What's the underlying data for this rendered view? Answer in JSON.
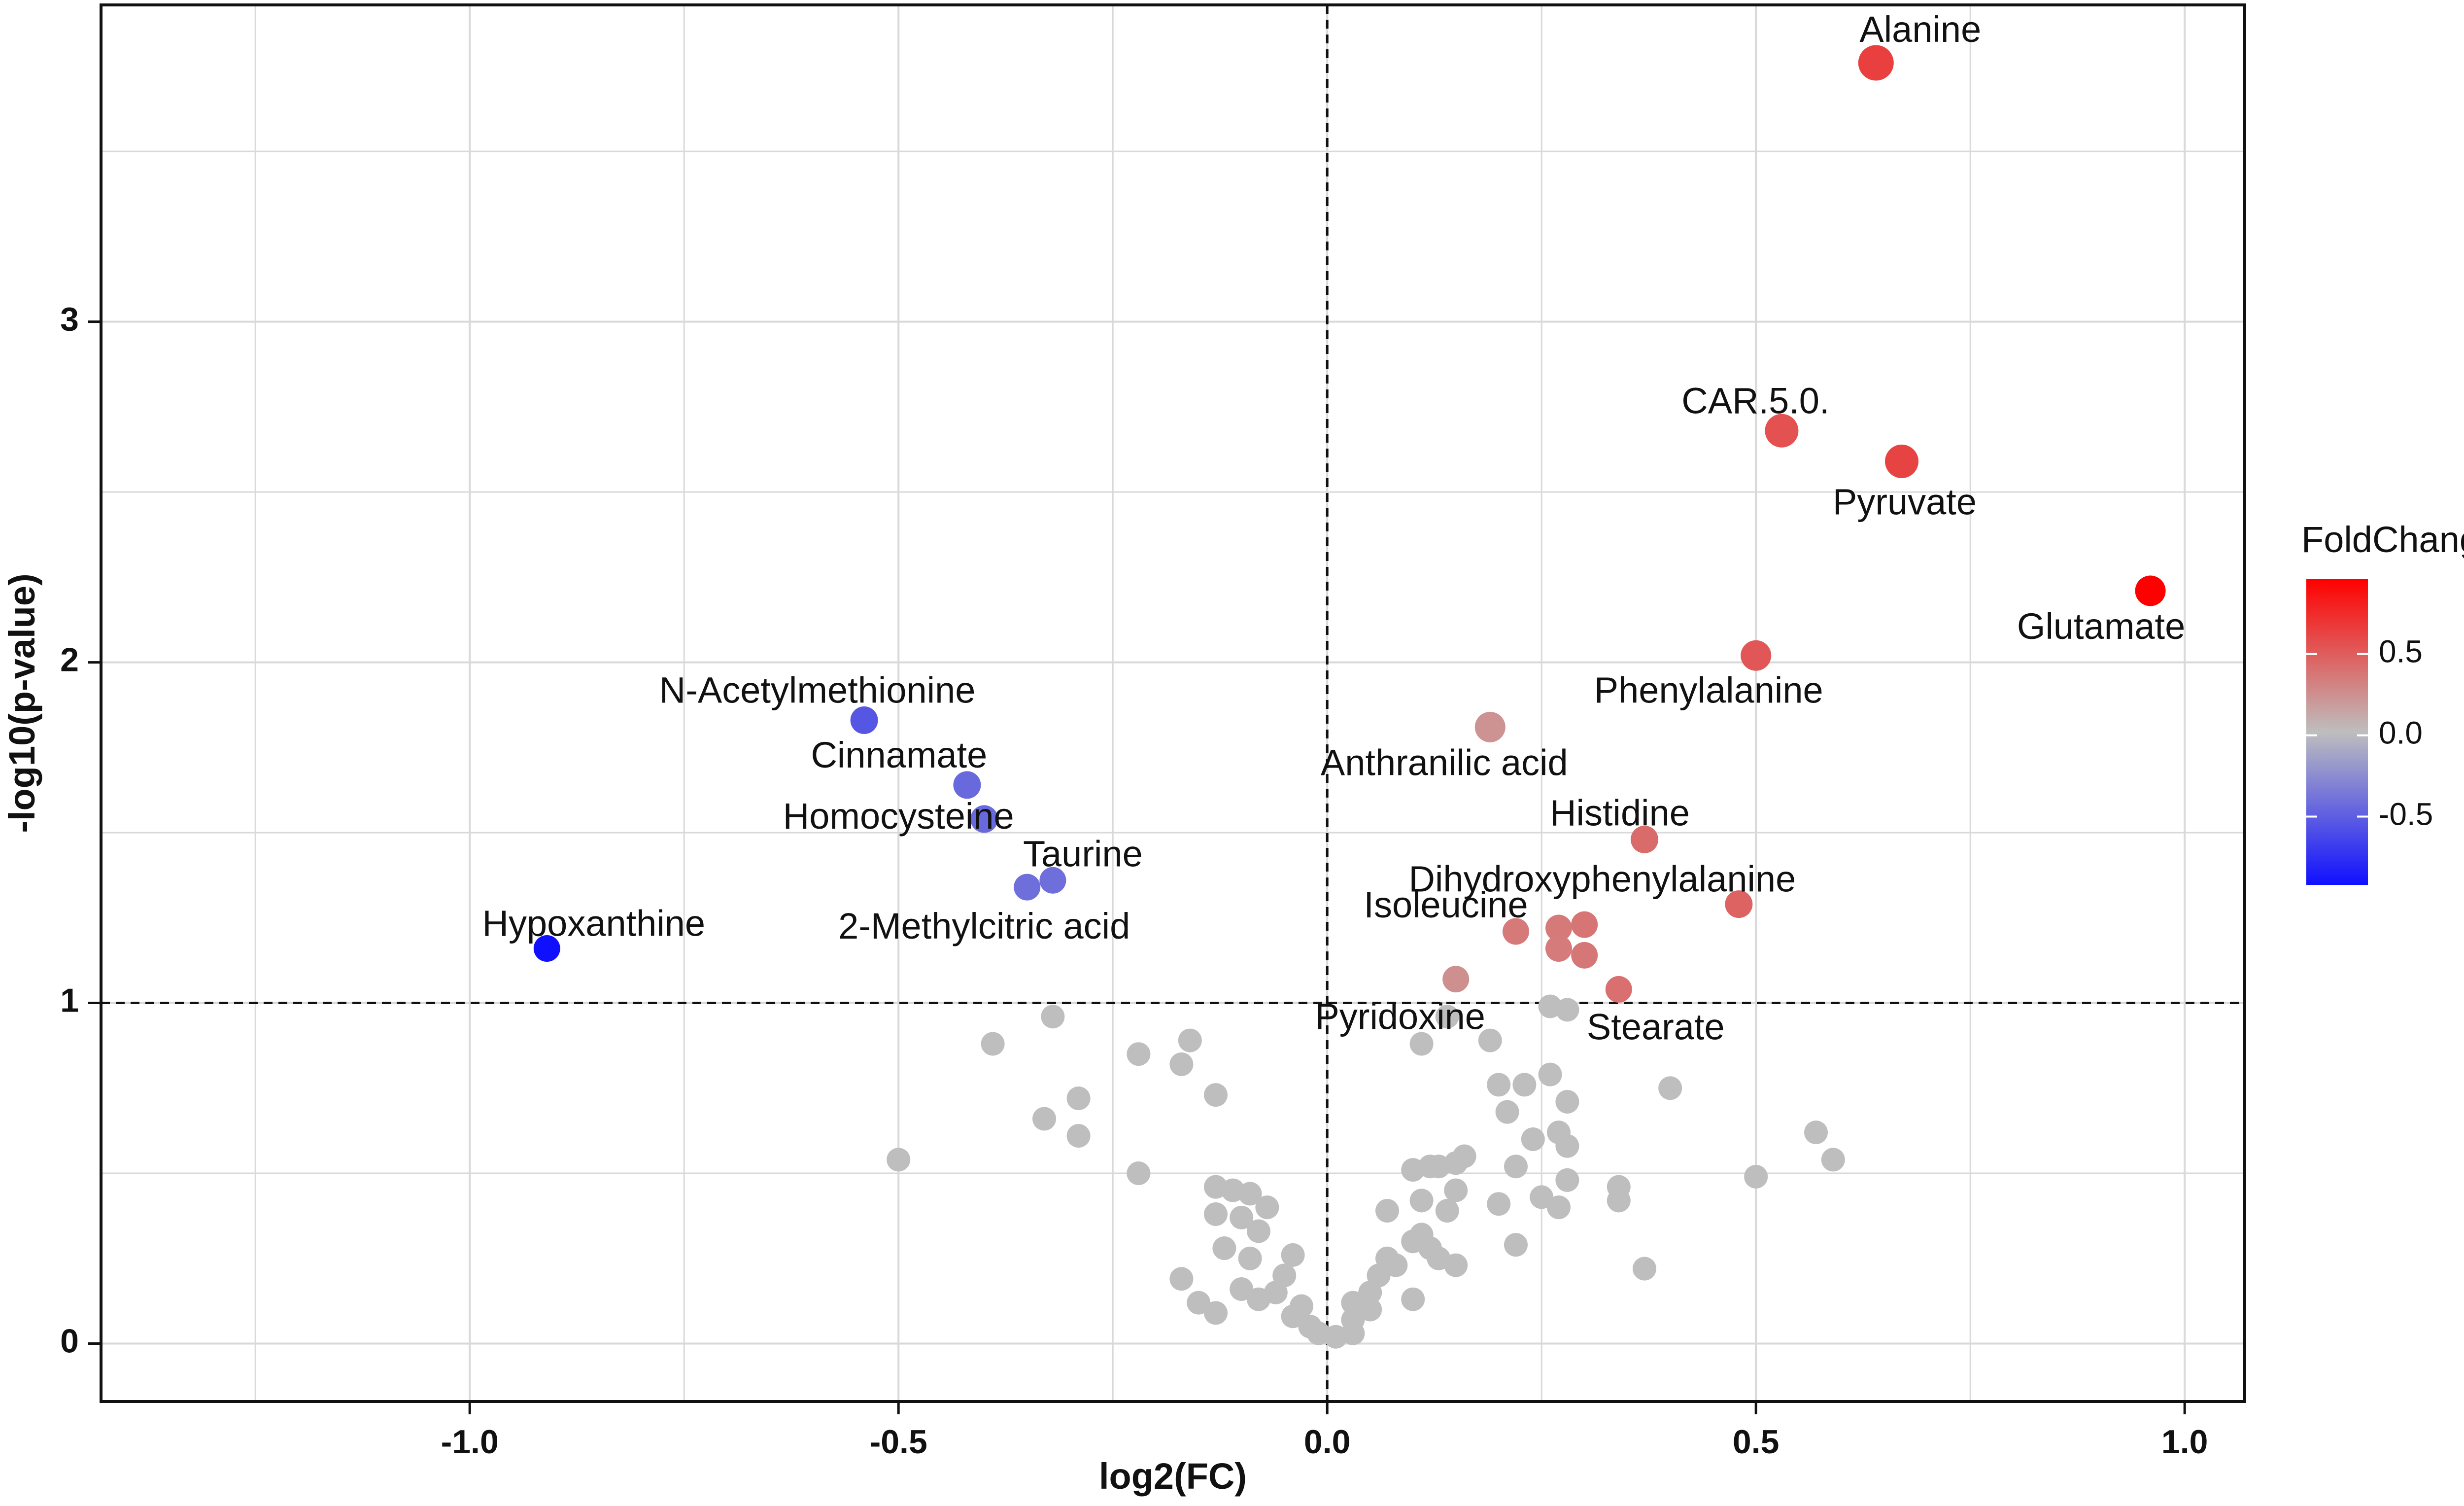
{
  "chart_data": {
    "type": "scatter",
    "title": "",
    "xlabel": "log2(FC)",
    "ylabel": "-log10(p-value)",
    "xlim": [
      -1.43,
      1.07
    ],
    "ylim": [
      -0.17,
      3.93
    ],
    "x_ticks": [
      -1.0,
      -0.5,
      0.0,
      0.5,
      1.0
    ],
    "x_tick_labels": [
      "-1.0",
      "-0.5",
      "0.0",
      "0.5",
      "1.0"
    ],
    "y_ticks": [
      0,
      1,
      2,
      3
    ],
    "y_tick_labels": [
      "0",
      "1",
      "2",
      "3"
    ],
    "grid": true,
    "threshold_lines": {
      "x": 0.0,
      "y": 1.0
    },
    "colors": {
      "high": "#ff0000",
      "mid": "#bebebe",
      "low": "#1010ff",
      "nonsignificant": "#bebebe",
      "threshold": "#111111"
    },
    "legend": {
      "title": "FoldChange",
      "position": "right",
      "range": [
        -0.92,
        0.96
      ],
      "ticks": [
        0.5,
        0.0,
        -0.5
      ],
      "tick_labels": [
        "0.5",
        "0.0",
        "-0.5"
      ]
    },
    "labeled_points": [
      {
        "name": "Alanine",
        "x": 0.64,
        "y": 3.76,
        "fc": 0.64,
        "size": 1.35
      },
      {
        "name": "CAR.5.0.",
        "x": 0.53,
        "y": 2.68,
        "fc": 0.55,
        "size": 1.25
      },
      {
        "name": "Pyruvate",
        "x": 0.67,
        "y": 2.59,
        "fc": 0.62,
        "size": 1.25
      },
      {
        "name": "Glutamate",
        "x": 0.96,
        "y": 2.21,
        "fc": 0.96,
        "size": 1.15
      },
      {
        "name": "Phenylalanine",
        "x": 0.5,
        "y": 2.02,
        "fc": 0.52,
        "size": 1.15
      },
      {
        "name": "Anthranilic acid",
        "x": 0.19,
        "y": 1.81,
        "fc": 0.22,
        "size": 1.15
      },
      {
        "name": "Histidine",
        "x": 0.37,
        "y": 1.48,
        "fc": 0.42,
        "size": 1.05
      },
      {
        "name": "Dihydroxyphenylalanine",
        "x": 0.48,
        "y": 1.29,
        "fc": 0.46,
        "size": 1.05
      },
      {
        "name": "Isoleucine",
        "x": 0.22,
        "y": 1.21,
        "fc": 0.35,
        "size": 1.0
      },
      {
        "name": "Pyridoxine",
        "x": 0.15,
        "y": 1.07,
        "fc": 0.24,
        "size": 1.0
      },
      {
        "name": "Stearate",
        "x": 0.34,
        "y": 1.04,
        "fc": 0.4,
        "size": 1.0
      },
      {
        "name": "N-Acetylmethionine",
        "x": -0.54,
        "y": 1.83,
        "fc": -0.55,
        "size": 1.05
      },
      {
        "name": "Cinnamate",
        "x": -0.42,
        "y": 1.64,
        "fc": -0.45,
        "size": 1.05
      },
      {
        "name": "Homocysteine",
        "x": -0.4,
        "y": 1.54,
        "fc": -0.45,
        "size": 1.05
      },
      {
        "name": "Taurine",
        "x": -0.32,
        "y": 1.36,
        "fc": -0.42,
        "size": 1.0
      },
      {
        "name": "2-Methylcitric acid",
        "x": -0.35,
        "y": 1.34,
        "fc": -0.42,
        "size": 1.0
      },
      {
        "name": "Hypoxanthine",
        "x": -0.91,
        "y": 1.16,
        "fc": -0.92,
        "size": 1.0
      }
    ],
    "unlabeled_significant_points": [
      {
        "x": 0.27,
        "y": 1.22,
        "fc": 0.35
      },
      {
        "x": 0.3,
        "y": 1.23,
        "fc": 0.37
      },
      {
        "x": 0.27,
        "y": 1.16,
        "fc": 0.34
      },
      {
        "x": 0.3,
        "y": 1.14,
        "fc": 0.36
      }
    ],
    "nonsignificant_points": [
      [
        -0.32,
        0.96
      ],
      [
        -0.39,
        0.88
      ],
      [
        -0.16,
        0.89
      ],
      [
        -0.22,
        0.85
      ],
      [
        -0.17,
        0.82
      ],
      [
        -0.13,
        0.73
      ],
      [
        -0.29,
        0.72
      ],
      [
        -0.33,
        0.66
      ],
      [
        -0.29,
        0.61
      ],
      [
        -0.5,
        0.54
      ],
      [
        -0.22,
        0.5
      ],
      [
        -0.13,
        0.46
      ],
      [
        -0.11,
        0.45
      ],
      [
        -0.09,
        0.44
      ],
      [
        -0.07,
        0.4
      ],
      [
        -0.13,
        0.38
      ],
      [
        -0.1,
        0.37
      ],
      [
        -0.08,
        0.33
      ],
      [
        -0.12,
        0.28
      ],
      [
        -0.04,
        0.26
      ],
      [
        -0.09,
        0.25
      ],
      [
        -0.05,
        0.2
      ],
      [
        -0.06,
        0.15
      ],
      [
        -0.17,
        0.19
      ],
      [
        -0.1,
        0.16
      ],
      [
        -0.08,
        0.13
      ],
      [
        -0.15,
        0.12
      ],
      [
        -0.13,
        0.09
      ],
      [
        -0.04,
        0.08
      ],
      [
        -0.02,
        0.05
      ],
      [
        -0.03,
        0.11
      ],
      [
        -0.01,
        0.03
      ],
      [
        0.01,
        0.02
      ],
      [
        0.03,
        0.03
      ],
      [
        0.03,
        0.07
      ],
      [
        0.05,
        0.1
      ],
      [
        0.05,
        0.15
      ],
      [
        0.03,
        0.12
      ],
      [
        0.06,
        0.2
      ],
      [
        0.08,
        0.23
      ],
      [
        0.07,
        0.25
      ],
      [
        0.1,
        0.3
      ],
      [
        0.11,
        0.32
      ],
      [
        0.12,
        0.28
      ],
      [
        0.13,
        0.25
      ],
      [
        0.15,
        0.23
      ],
      [
        0.1,
        0.13
      ],
      [
        0.07,
        0.39
      ],
      [
        0.11,
        0.42
      ],
      [
        0.14,
        0.39
      ],
      [
        0.15,
        0.45
      ],
      [
        0.1,
        0.51
      ],
      [
        0.13,
        0.52
      ],
      [
        0.15,
        0.53
      ],
      [
        0.16,
        0.55
      ],
      [
        0.11,
        0.88
      ],
      [
        0.14,
        0.96
      ],
      [
        0.19,
        0.89
      ],
      [
        0.2,
        0.76
      ],
      [
        0.21,
        0.68
      ],
      [
        0.23,
        0.76
      ],
      [
        0.26,
        0.79
      ],
      [
        0.28,
        0.71
      ],
      [
        0.24,
        0.6
      ],
      [
        0.22,
        0.52
      ],
      [
        0.2,
        0.41
      ],
      [
        0.22,
        0.29
      ],
      [
        0.25,
        0.43
      ],
      [
        0.27,
        0.4
      ],
      [
        0.28,
        0.48
      ],
      [
        0.27,
        0.62
      ],
      [
        0.28,
        0.58
      ],
      [
        0.26,
        0.99
      ],
      [
        0.28,
        0.98
      ],
      [
        0.34,
        0.46
      ],
      [
        0.34,
        0.42
      ],
      [
        0.37,
        0.22
      ],
      [
        0.4,
        0.75
      ],
      [
        0.5,
        0.49
      ],
      [
        0.57,
        0.62
      ],
      [
        0.59,
        0.54
      ],
      [
        0.12,
        0.52
      ]
    ]
  }
}
